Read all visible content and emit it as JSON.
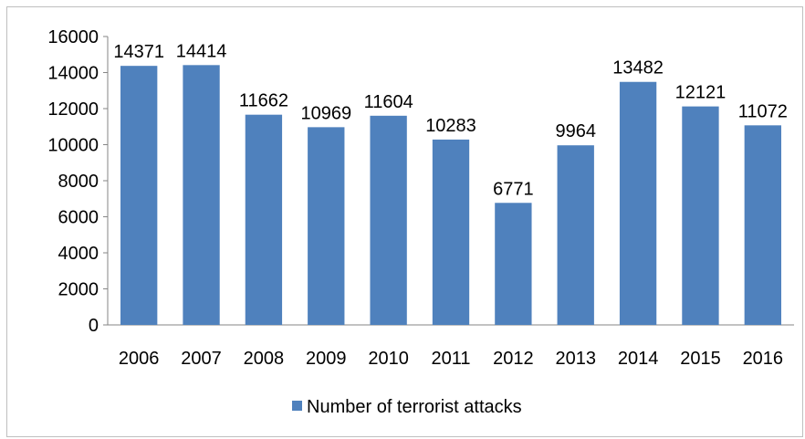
{
  "chart_data": {
    "type": "bar",
    "categories": [
      "2006",
      "2007",
      "2008",
      "2009",
      "2010",
      "2011",
      "2012",
      "2013",
      "2014",
      "2015",
      "2016"
    ],
    "series": [
      {
        "name": "Number of terrorist attacks",
        "values": [
          14371,
          14414,
          11662,
          10969,
          11604,
          10283,
          6771,
          9964,
          13482,
          12121,
          11072
        ],
        "color": "#4F81BD"
      }
    ],
    "title": "",
    "xlabel": "",
    "ylabel": "",
    "ylim": [
      0,
      16000
    ],
    "yticks": [
      0,
      2000,
      4000,
      6000,
      8000,
      10000,
      12000,
      14000,
      16000
    ],
    "grid": false,
    "legend_position": "bottom",
    "data_labels": true
  }
}
